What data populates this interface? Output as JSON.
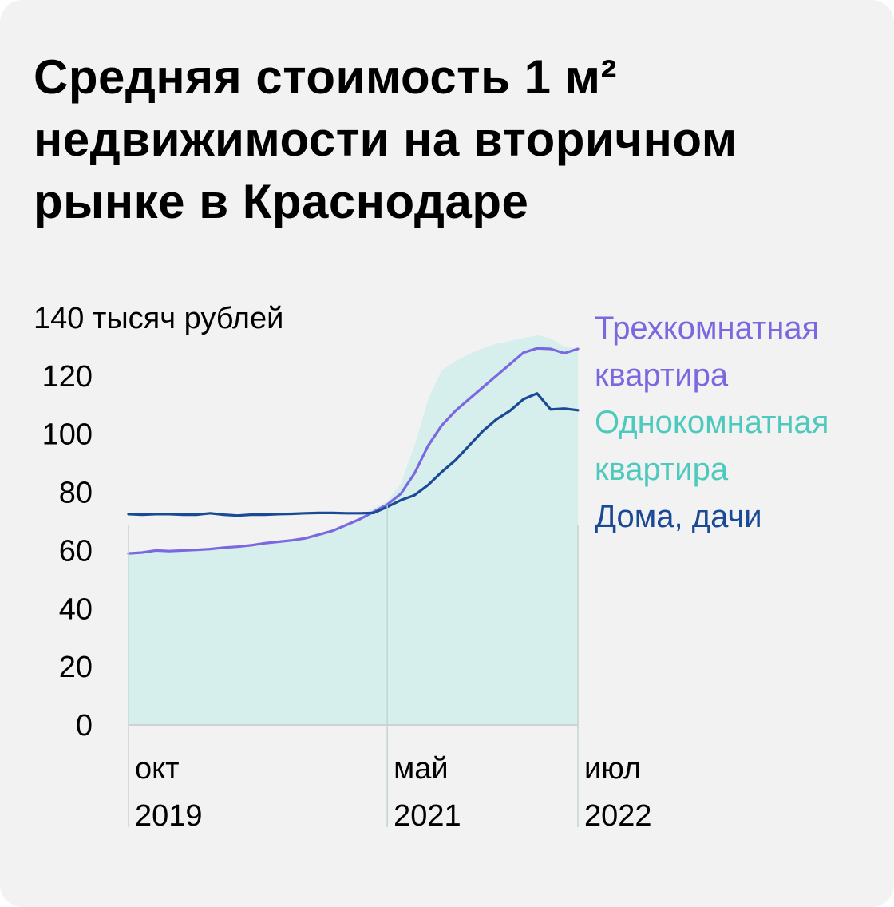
{
  "title_lines": [
    "Средняя стоимость 1 м²",
    "недвижимости на вторичном",
    "рынке в Краснодаре"
  ],
  "chart_data": {
    "type": "line",
    "ylabel_unit": "тысяч рублей",
    "ylim": [
      0,
      140
    ],
    "yticks": [
      0,
      20,
      40,
      60,
      80,
      100,
      120,
      140
    ],
    "ytick_labels": [
      "0",
      "20",
      "40",
      "60",
      "80",
      "100",
      "120",
      "140 тысяч рублей"
    ],
    "xlim": [
      0,
      33
    ],
    "xticks": [
      {
        "x": 0,
        "line1": "окт",
        "line2": "2019"
      },
      {
        "x": 19,
        "line1": "май",
        "line2": "2021"
      },
      {
        "x": 33,
        "line1": "июл",
        "line2": "2022"
      }
    ],
    "grid": false,
    "legend_position": "right",
    "series": [
      {
        "name": "Трехкомнатная квартира",
        "style": "line",
        "color": "#7b68e0",
        "x": [
          0,
          1,
          2,
          3,
          4,
          5,
          6,
          7,
          8,
          9,
          10,
          11,
          12,
          13,
          14,
          15,
          16,
          17,
          18,
          19,
          20,
          21,
          22,
          23,
          24,
          25,
          26,
          27,
          28,
          29,
          30,
          31,
          32,
          33
        ],
        "y": [
          59,
          59.3,
          60,
          59.8,
          60,
          60.2,
          60.5,
          61,
          61.3,
          61.8,
          62.5,
          63,
          63.5,
          64.2,
          65.5,
          66.8,
          68.8,
          70.8,
          73.3,
          75.8,
          79.5,
          86.5,
          96,
          103,
          108,
          112,
          116,
          120,
          124,
          128,
          129.5,
          129.3,
          127.8,
          129.3
        ]
      },
      {
        "name": "Однокомнатная квартира",
        "style": "area",
        "color": "#4ec9bd",
        "fill": "#d6efec",
        "x": [
          0,
          1,
          2,
          3,
          4,
          5,
          6,
          7,
          8,
          9,
          10,
          11,
          12,
          13,
          14,
          15,
          16,
          17,
          18,
          19,
          20,
          21,
          22,
          23,
          24,
          25,
          26,
          27,
          28,
          29,
          30,
          31,
          32,
          33
        ],
        "y": [
          59,
          59.3,
          60,
          59.8,
          60,
          60.2,
          60.5,
          61,
          61.3,
          61.8,
          62.5,
          63,
          63.5,
          64.2,
          65.5,
          67,
          69,
          71.5,
          74.5,
          77,
          83,
          96,
          112,
          122,
          125,
          127.5,
          129.5,
          131,
          132,
          133,
          134,
          133,
          130,
          129.5
        ]
      },
      {
        "name": "Дома, дачи",
        "style": "line",
        "color": "#1a4a96",
        "x": [
          0,
          1,
          2,
          3,
          4,
          5,
          6,
          7,
          8,
          9,
          10,
          11,
          12,
          13,
          14,
          15,
          16,
          17,
          18,
          19,
          20,
          21,
          22,
          23,
          24,
          25,
          26,
          27,
          28,
          29,
          30,
          31,
          32,
          33
        ],
        "y": [
          72.5,
          72.3,
          72.5,
          72.5,
          72.3,
          72.3,
          72.8,
          72.3,
          72,
          72.3,
          72.3,
          72.5,
          72.6,
          72.8,
          72.9,
          72.9,
          72.8,
          72.8,
          72.9,
          75,
          77.3,
          79,
          82.5,
          87,
          91,
          96,
          101,
          105,
          108,
          112,
          114,
          108.5,
          108.8,
          108.2
        ]
      }
    ]
  }
}
